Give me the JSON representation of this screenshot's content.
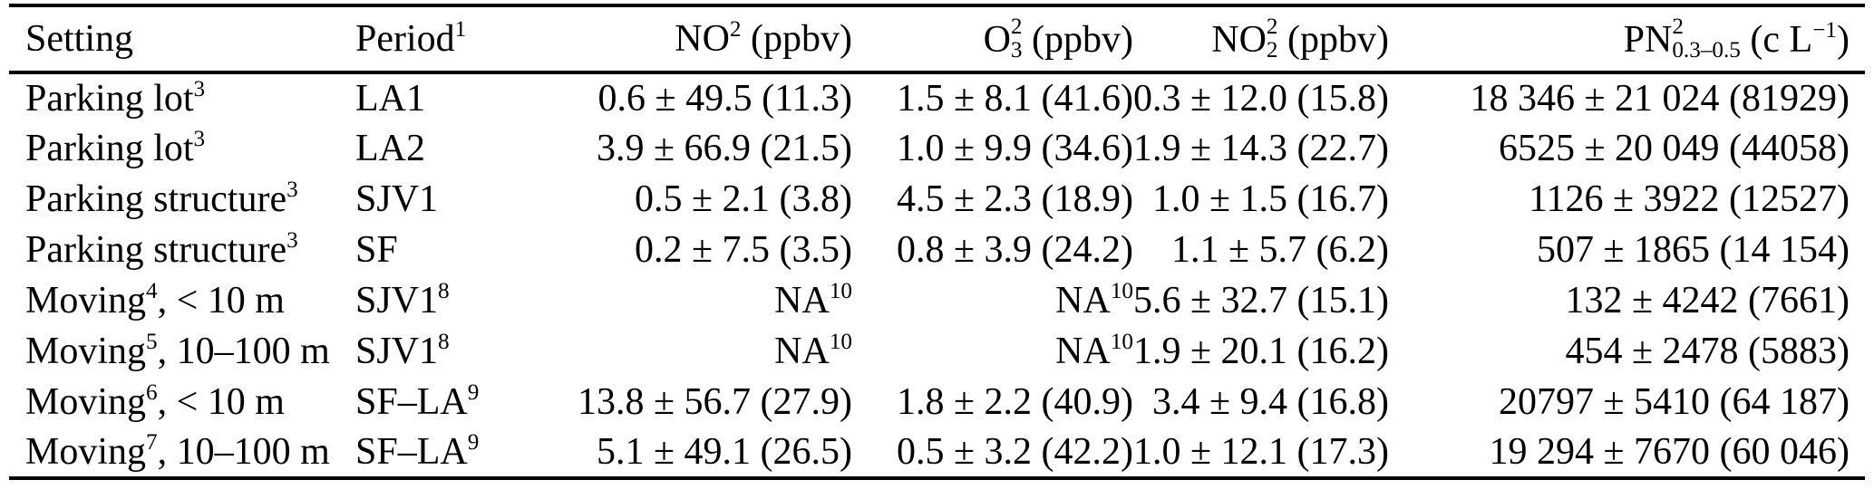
{
  "colors": {
    "text": "#000000",
    "background": "#ffffff",
    "rule": "#000000"
  },
  "table": {
    "columns": [
      {
        "key": "setting",
        "label": "Setting",
        "align": "left"
      },
      {
        "key": "period",
        "label": "Period^1^",
        "align": "left"
      },
      {
        "key": "no",
        "label": "NO^2^ (ppbv)",
        "align": "right"
      },
      {
        "key": "o3",
        "label": "O$2|3$ (ppbv)",
        "align": "right"
      },
      {
        "key": "no2",
        "label": "NO$2|2$ (ppbv)",
        "align": "right"
      },
      {
        "key": "pn",
        "label": "PN$2|0.3–0.5$ (c L^−1^)",
        "align": "right"
      }
    ],
    "rows": [
      {
        "setting": "Parking lot^3^",
        "period": "LA1",
        "no": "0.6 ± 49.5 (11.3)",
        "o3": "1.5 ± 8.1 (41.6)",
        "no2": "0.3 ± 12.0 (15.8)",
        "pn": "18 346 ± 21 024 (81929)"
      },
      {
        "setting": "Parking lot^3^",
        "period": "LA2",
        "no": "3.9 ± 66.9 (21.5)",
        "o3": "1.0 ± 9.9 (34.6)",
        "no2": "1.9 ± 14.3 (22.7)",
        "pn": "6525 ± 20 049 (44058)"
      },
      {
        "setting": "Parking structure^3^",
        "period": "SJV1",
        "no": "0.5 ± 2.1 (3.8)",
        "o3": "4.5 ± 2.3 (18.9)",
        "no2": "1.0 ± 1.5 (16.7)",
        "pn": "1126 ± 3922 (12527)"
      },
      {
        "setting": "Parking structure^3^",
        "period": "SF",
        "no": "0.2 ± 7.5 (3.5)",
        "o3": "0.8 ± 3.9 (24.2)",
        "no2": "1.1 ± 5.7 (6.2)",
        "pn": "507 ± 1865 (14 154)"
      },
      {
        "setting": "Moving^4^, < 10 m",
        "period": "SJV1^8^",
        "no": "NA^10^",
        "o3": "NA^10^",
        "no2": "5.6 ± 32.7 (15.1)",
        "pn": "132 ± 4242 (7661)"
      },
      {
        "setting": "Moving^5^, 10–100 m",
        "period": "SJV1^8^",
        "no": "NA^10^",
        "o3": "NA^10^",
        "no2": "1.9 ± 20.1 (16.2)",
        "pn": "454 ± 2478 (5883)"
      },
      {
        "setting": "Moving^6^, < 10 m",
        "period": "SF–LA^9^",
        "no": "13.8 ± 56.7 (27.9)",
        "o3": "1.8 ± 2.2 (40.9)",
        "no2": "3.4 ± 9.4 (16.8)",
        "pn": "20797 ± 5410 (64 187)"
      },
      {
        "setting": "Moving^7^, 10–100 m",
        "period": "SF–LA^9^",
        "no": "5.1 ± 49.1 (26.5)",
        "o3": "0.5 ± 3.2 (42.2)",
        "no2": "1.0 ± 12.1 (17.3)",
        "pn": "19 294 ± 7670 (60 046)"
      }
    ]
  }
}
